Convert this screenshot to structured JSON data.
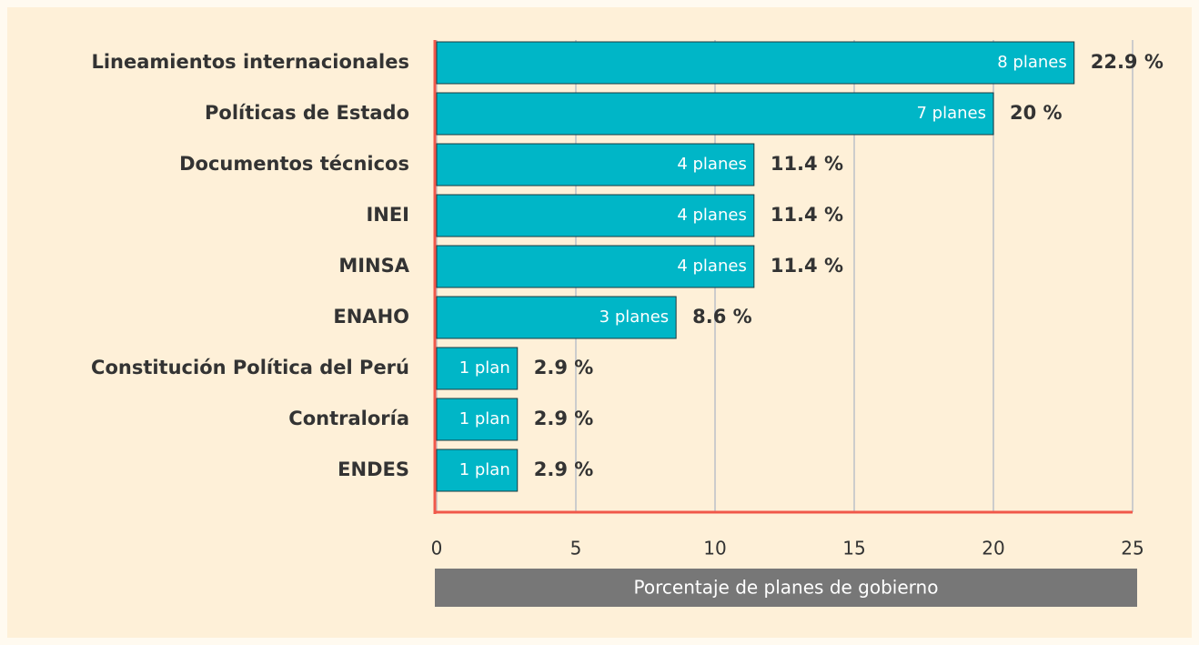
{
  "chart_data": {
    "type": "hbar",
    "categories": [
      "Lineamientos internacionales",
      "Políticas de Estado",
      "Documentos técnicos",
      "INEI",
      "MINSA",
      "ENAHO",
      "Constitución Política del Perú",
      "Contraloría",
      "ENDES"
    ],
    "values": [
      22.9,
      20,
      11.4,
      11.4,
      11.4,
      8.6,
      2.9,
      2.9,
      2.9
    ],
    "value_labels": [
      "22.9 %",
      "20 %",
      "11.4 %",
      "11.4 %",
      "11.4 %",
      "8.6 %",
      "2.9 %",
      "2.9 %",
      "2.9 %"
    ],
    "bar_labels": [
      "8 planes",
      "7 planes",
      "4 planes",
      "4 planes",
      "4 planes",
      "3 planes",
      "1 plan",
      "1 plan",
      "1 plan"
    ],
    "color": "#00b6c7",
    "xlabel": "Porcentaje de planes de gobierno",
    "xlim": [
      0,
      25
    ],
    "xticks": [
      0,
      5,
      10,
      15,
      20,
      25
    ],
    "grid": true
  }
}
